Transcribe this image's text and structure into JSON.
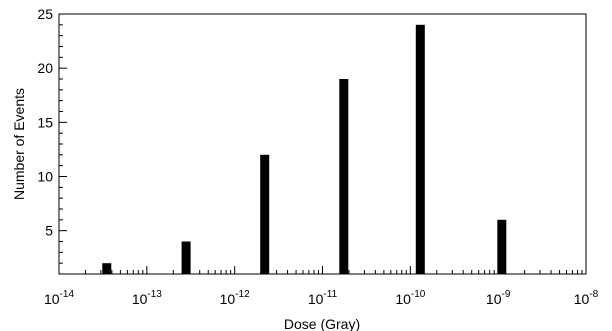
{
  "chart_data": {
    "type": "bar",
    "xscale": "log",
    "xlabel": "Dose (Gray)",
    "ylabel": "Number of Events",
    "xlim": [
      1e-14,
      1e-08
    ],
    "ylim": [
      1,
      25
    ],
    "x_ticks": [
      {
        "base": "10",
        "exp": "-14"
      },
      {
        "base": "10",
        "exp": "-13"
      },
      {
        "base": "10",
        "exp": "-12"
      },
      {
        "base": "10",
        "exp": "-11"
      },
      {
        "base": "10",
        "exp": "-10"
      },
      {
        "base": "10",
        "exp": "-9"
      },
      {
        "base": "10",
        "exp": "-8"
      }
    ],
    "y_ticks": [
      "5",
      "10",
      "15",
      "20",
      "25"
    ],
    "x": [
      3.5e-14,
      2.8e-13,
      2.2e-12,
      1.75e-11,
      1.3e-10,
      1.1e-09
    ],
    "values": [
      2,
      4,
      12,
      19,
      24,
      6
    ],
    "bar_color": "#000000",
    "grid": false
  }
}
